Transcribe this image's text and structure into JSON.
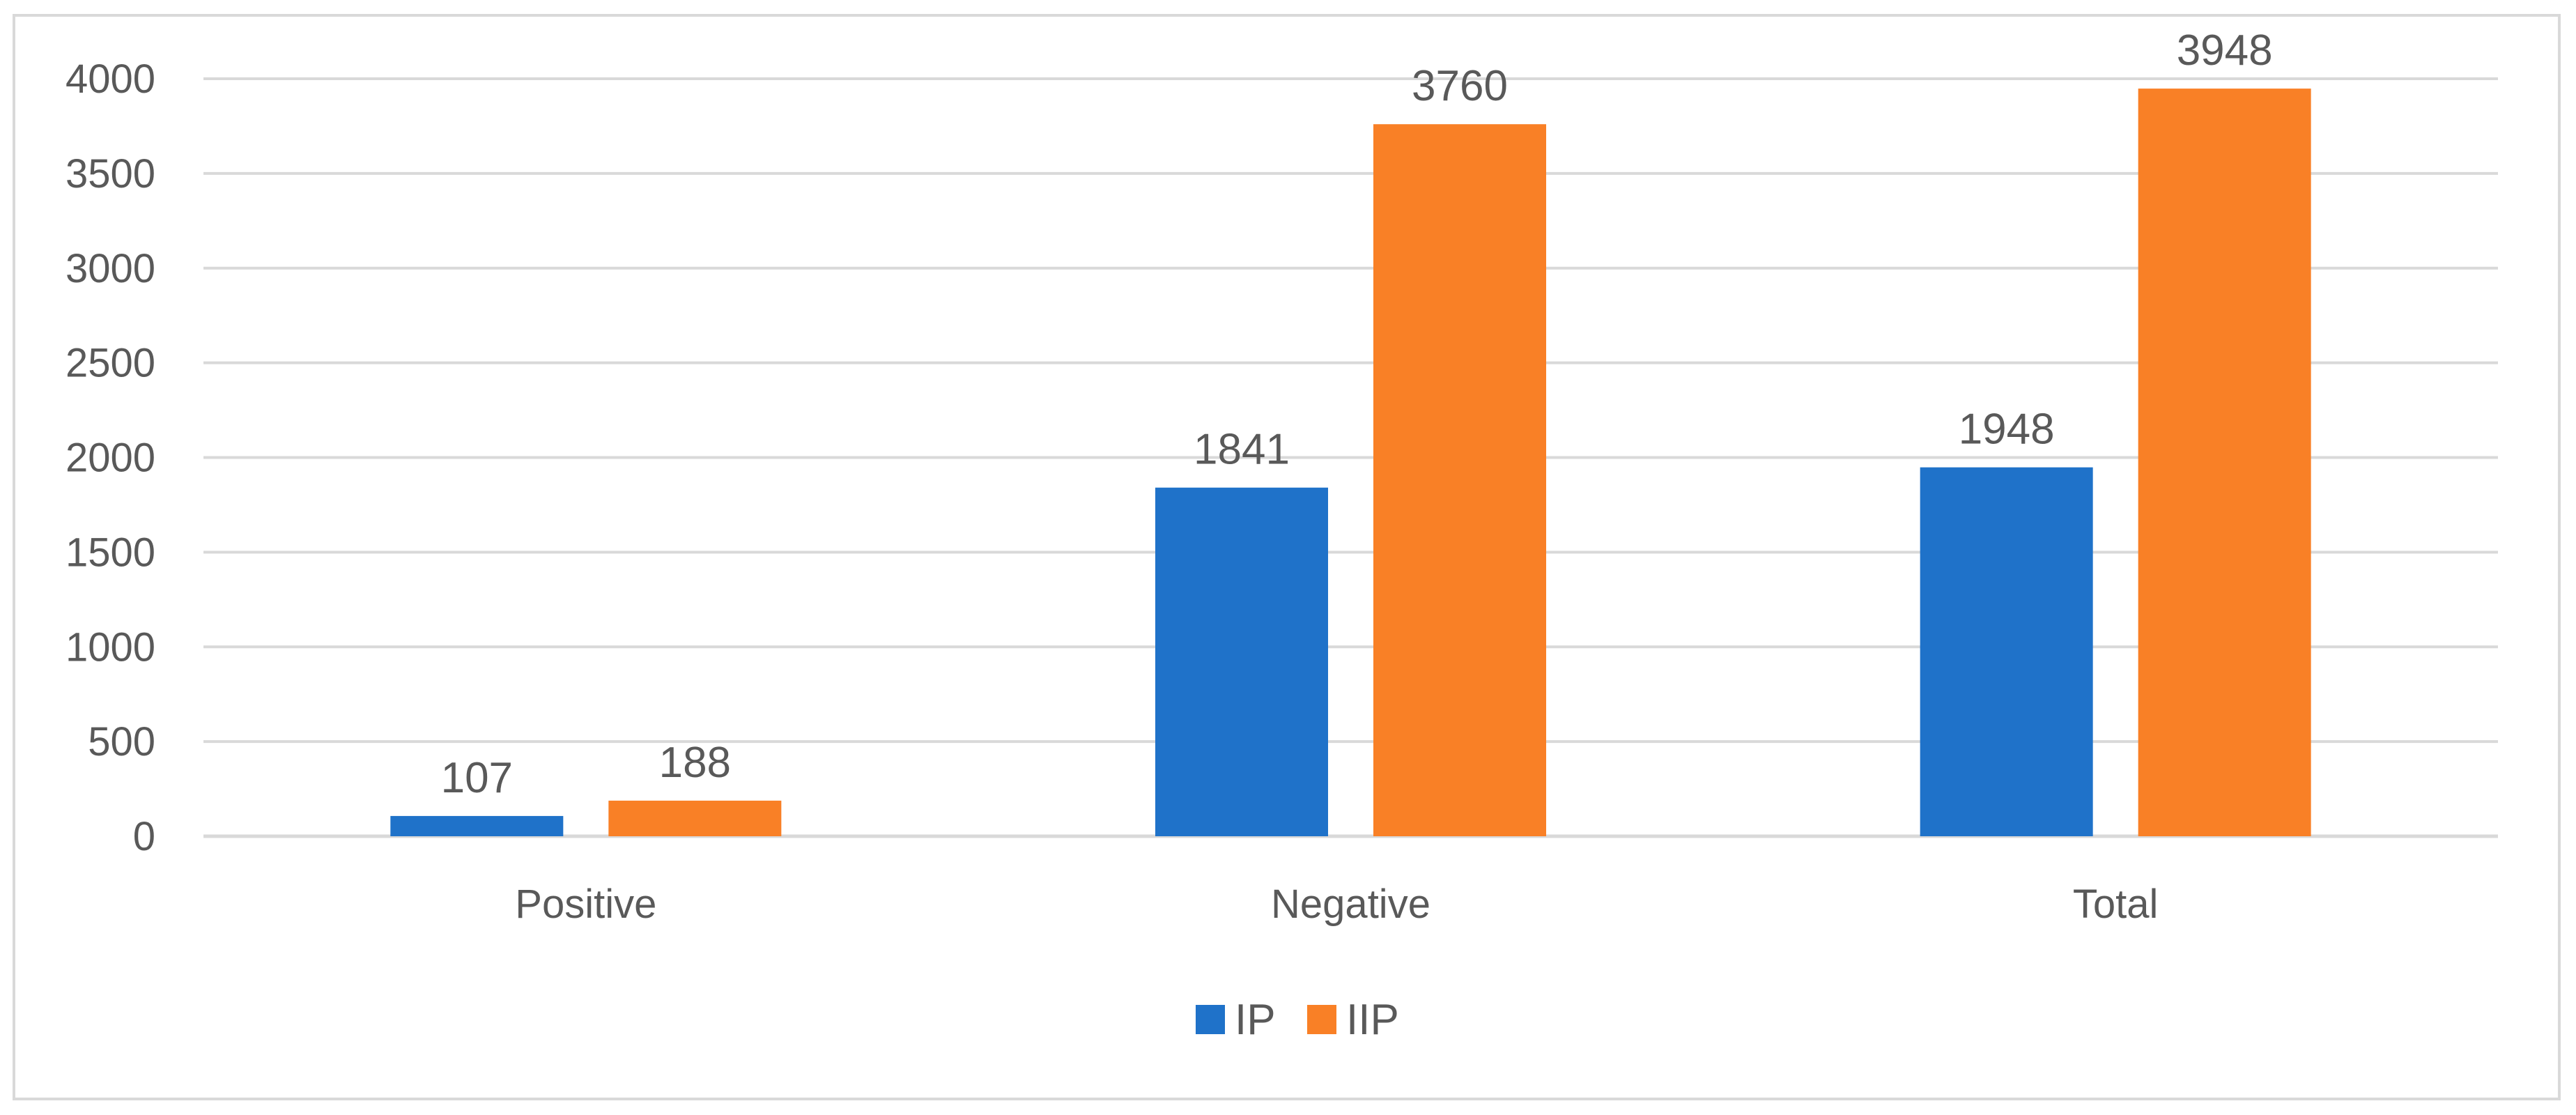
{
  "chart_data": {
    "type": "bar",
    "categories": [
      "Positive",
      "Negative",
      "Total"
    ],
    "series": [
      {
        "name": "IP",
        "color": "#1f72c9",
        "values": [
          107,
          1841,
          1948
        ]
      },
      {
        "name": "IIP",
        "color": "#f98026",
        "values": [
          188,
          3760,
          3948
        ]
      }
    ],
    "ylim": [
      0,
      4000
    ],
    "yticks": [
      0,
      500,
      1000,
      1500,
      2000,
      2500,
      3000,
      3500,
      4000
    ],
    "grid": true,
    "legend": "bottom",
    "title": "",
    "xlabel": "",
    "ylabel": ""
  },
  "colors": {
    "grid": "#d9d9d9",
    "axis_text": "#595959",
    "frame": "#d9d9d9"
  }
}
